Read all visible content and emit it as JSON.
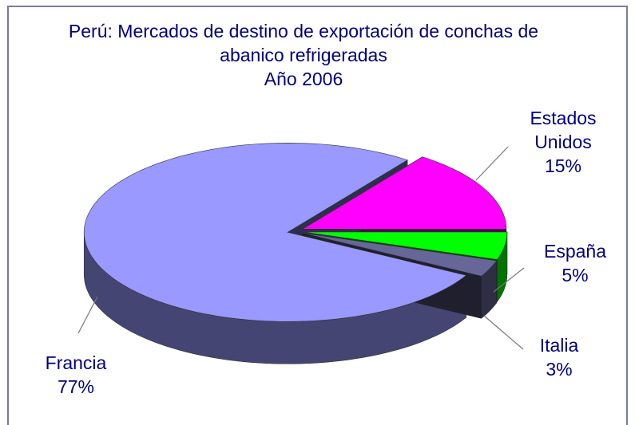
{
  "chart_data": {
    "type": "pie",
    "title": "Perú: Mercados de destino de exportación de conchas de abanico refrigeradas",
    "subtitle": "Año 2006",
    "categories": [
      "Francia",
      "Estados Unidos",
      "España",
      "Italia"
    ],
    "values": [
      77,
      15,
      5,
      3
    ],
    "value_labels": [
      "77%",
      "15%",
      "5%",
      "3%"
    ],
    "colors": [
      "#9999ff",
      "#ff00ff",
      "#00ff00",
      "#666699"
    ]
  }
}
